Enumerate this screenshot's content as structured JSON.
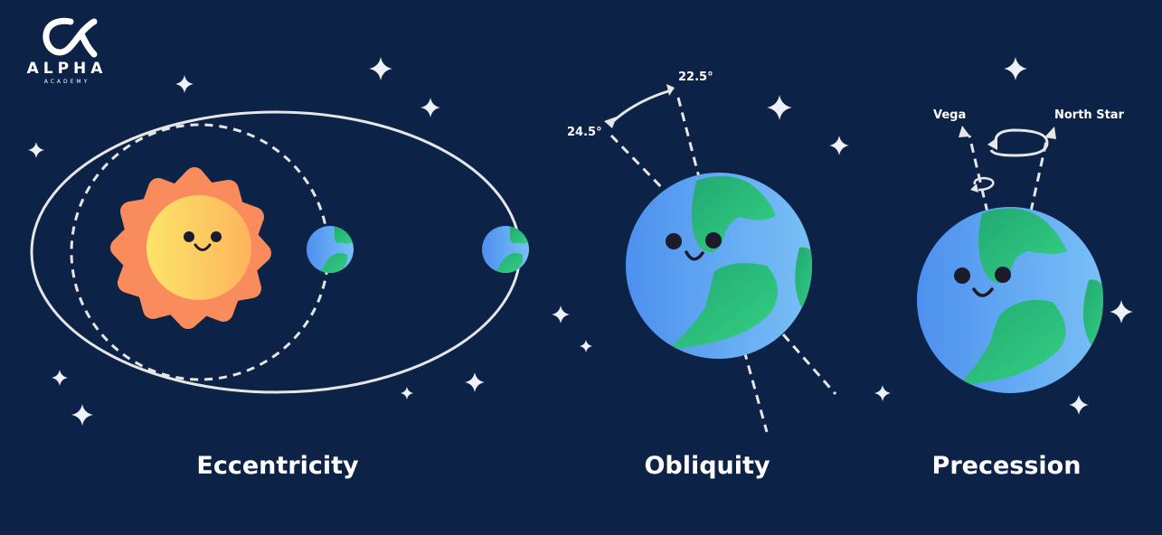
{
  "logo": {
    "wordmark": "ALPHA",
    "tagline": "ACADEMY"
  },
  "panels": [
    {
      "id": "eccentricity",
      "caption": "Eccentricity"
    },
    {
      "id": "obliquity",
      "caption": "Obliquity",
      "angles": [
        "22.5°",
        "24.5°"
      ]
    },
    {
      "id": "precession",
      "caption": "Precession",
      "stars": [
        "Vega",
        "North Star"
      ]
    }
  ],
  "colors": {
    "background": "#0c2347",
    "sun_rays": "#f98b5c",
    "sun_core": "#fdd462",
    "ocean": "#5aa5f2",
    "land": "#29c47b",
    "lines": "#e6e6e6"
  }
}
